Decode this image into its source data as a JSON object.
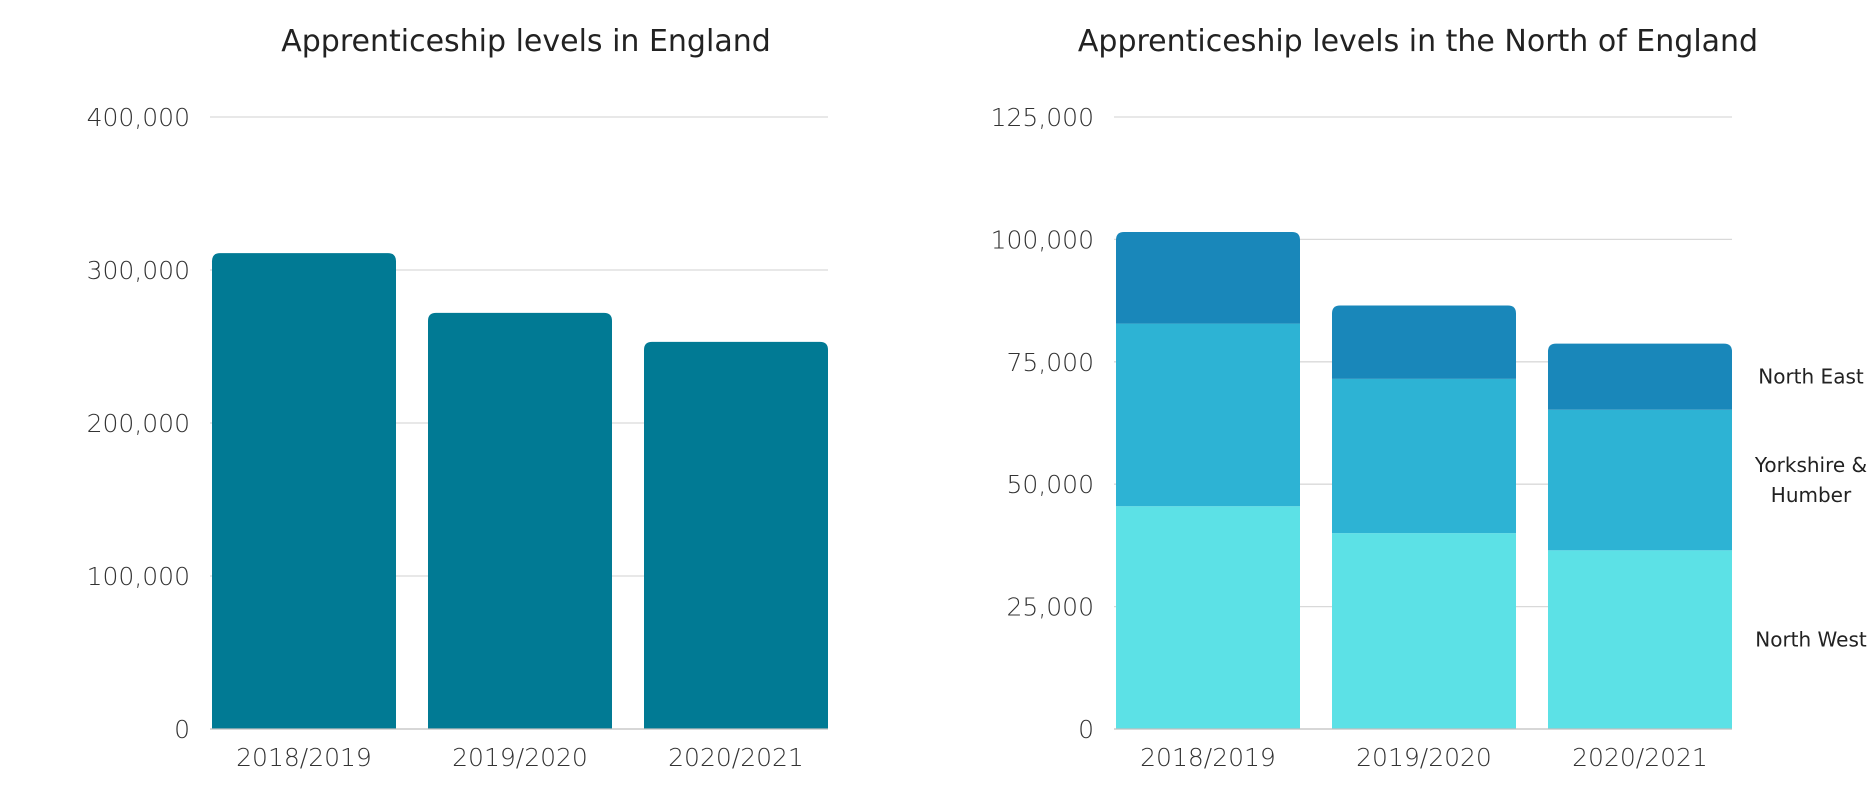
{
  "chart_data": [
    {
      "type": "bar",
      "title": "Apprenticeship levels in England",
      "categories": [
        "2018/2019",
        "2019/2020",
        "2020/2021"
      ],
      "values": [
        311000,
        272000,
        253000
      ],
      "ylim": [
        0,
        400000
      ],
      "yticks": [
        0,
        100000,
        200000,
        300000,
        400000
      ],
      "ytick_labels": [
        "0",
        "100,000",
        "200,000",
        "300,000",
        "400,000"
      ],
      "grid": true,
      "color": "#017a94"
    },
    {
      "type": "bar",
      "stacked": true,
      "title": "Apprenticeship levels in the North of England",
      "categories": [
        "2018/2019",
        "2019/2020",
        "2020/2021"
      ],
      "series": [
        {
          "name": "North West",
          "values": [
            45500,
            40000,
            36500
          ],
          "color": "#5ce1e6"
        },
        {
          "name": "Yorkshire & Humber",
          "values": [
            37300,
            31500,
            28700
          ],
          "color": "#2db3d4"
        },
        {
          "name": "North East",
          "values": [
            18700,
            15000,
            13500
          ],
          "color": "#1987ba"
        }
      ],
      "ylim": [
        0,
        125000
      ],
      "yticks": [
        0,
        25000,
        50000,
        75000,
        100000,
        125000
      ],
      "ytick_labels": [
        "0",
        "25,000",
        "50,000",
        "75,000",
        "100,000",
        "125,000"
      ],
      "grid": true,
      "legend_position": "right"
    }
  ]
}
